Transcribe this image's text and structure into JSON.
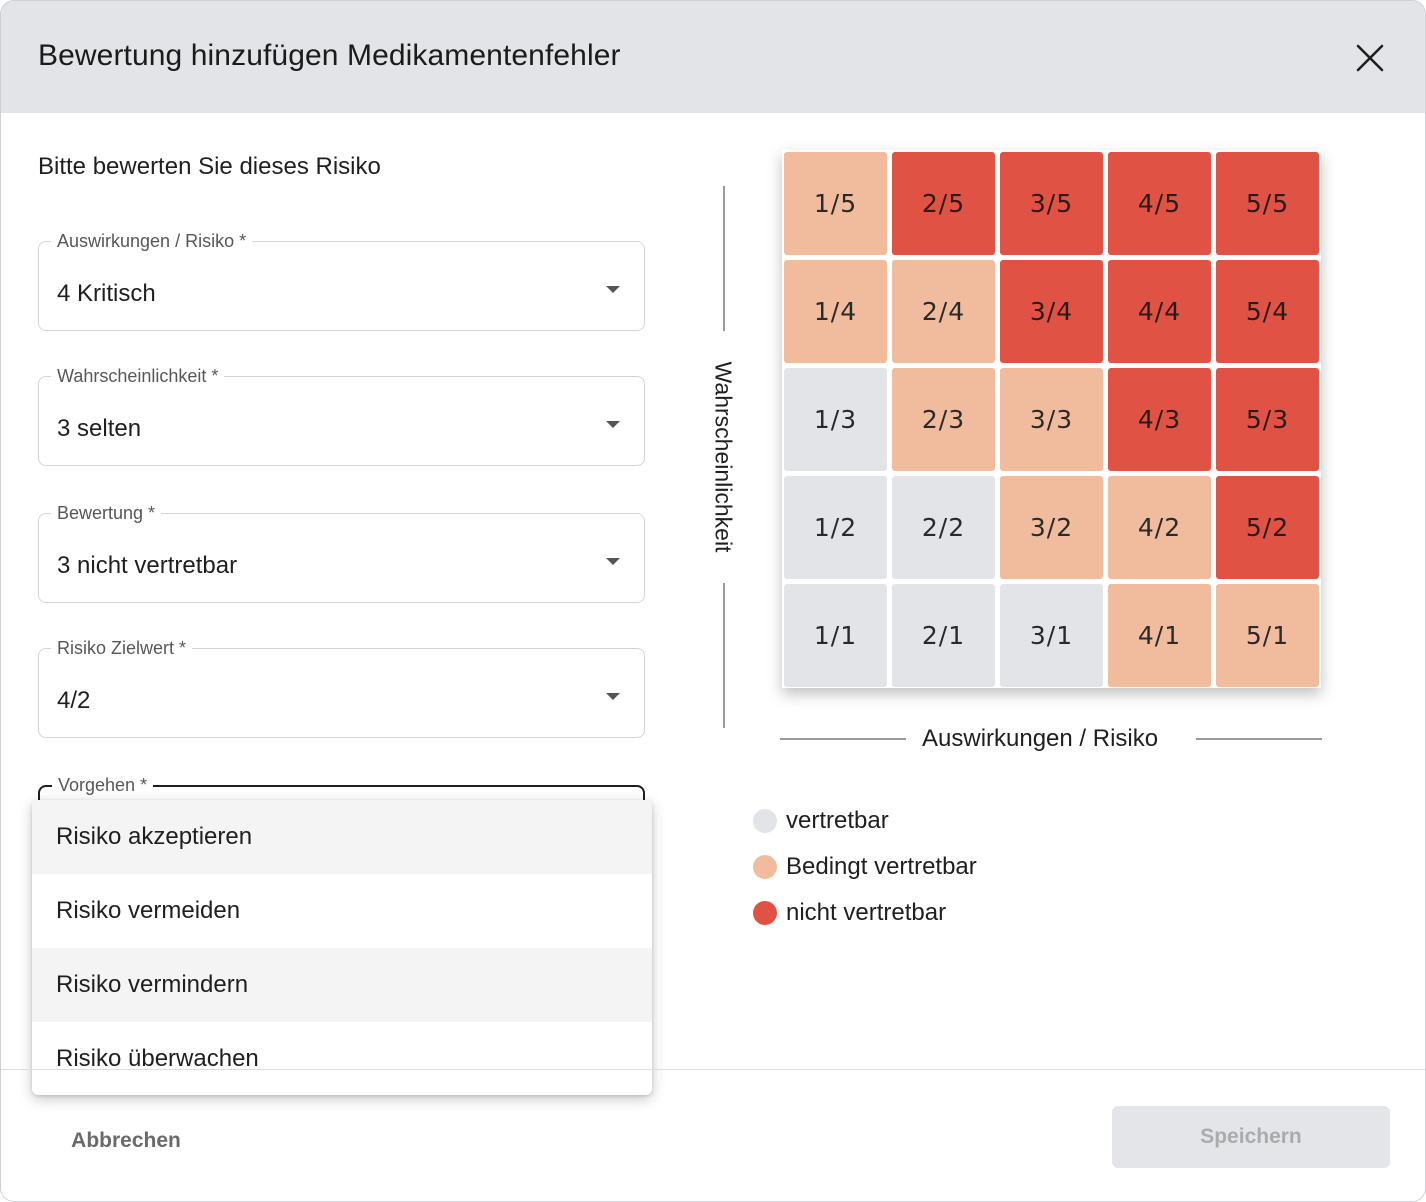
{
  "dialog": {
    "title": "Bewertung hinzufügen Medikamentenfehler",
    "subtitle": "Bitte bewerten Sie dieses Risiko"
  },
  "fields": [
    {
      "label": "Auswirkungen / Risiko *",
      "value": "4 Kritisch"
    },
    {
      "label": "Wahrscheinlichkeit *",
      "value": "3 selten"
    },
    {
      "label": "Bewertung *",
      "value": "3 nicht vertretbar"
    },
    {
      "label": "Risiko Zielwert *",
      "value": "4/2"
    },
    {
      "label": "Vorgehen *",
      "value": ""
    }
  ],
  "dropdown": {
    "options": [
      "Risiko akzeptieren",
      "Risiko vermeiden",
      "Risiko vermindern",
      "Risiko überwachen"
    ]
  },
  "matrix": {
    "y_axis_label": "Wahrscheinlichkeit",
    "x_axis_label": "Auswirkungen / Risiko",
    "rows": [
      [
        {
          "label": "1/5",
          "level": "light"
        },
        {
          "label": "2/5",
          "level": "red"
        },
        {
          "label": "3/5",
          "level": "red"
        },
        {
          "label": "4/5",
          "level": "red"
        },
        {
          "label": "5/5",
          "level": "red"
        }
      ],
      [
        {
          "label": "1/4",
          "level": "light"
        },
        {
          "label": "2/4",
          "level": "light"
        },
        {
          "label": "3/4",
          "level": "red"
        },
        {
          "label": "4/4",
          "level": "red"
        },
        {
          "label": "5/4",
          "level": "red"
        }
      ],
      [
        {
          "label": "1/3",
          "level": "grey"
        },
        {
          "label": "2/3",
          "level": "light"
        },
        {
          "label": "3/3",
          "level": "light"
        },
        {
          "label": "4/3",
          "level": "red"
        },
        {
          "label": "5/3",
          "level": "red"
        }
      ],
      [
        {
          "label": "1/2",
          "level": "grey"
        },
        {
          "label": "2/2",
          "level": "grey"
        },
        {
          "label": "3/2",
          "level": "light"
        },
        {
          "label": "4/2",
          "level": "light"
        },
        {
          "label": "5/2",
          "level": "red"
        }
      ],
      [
        {
          "label": "1/1",
          "level": "grey"
        },
        {
          "label": "2/1",
          "level": "grey"
        },
        {
          "label": "3/1",
          "level": "grey"
        },
        {
          "label": "4/1",
          "level": "light"
        },
        {
          "label": "5/1",
          "level": "light"
        }
      ]
    ]
  },
  "legend": [
    {
      "label": "vertretbar",
      "color": "#e3e4e8"
    },
    {
      "label": "Bedingt vertretbar",
      "color": "#f0bc9d"
    },
    {
      "label": "nicht vertretbar",
      "color": "#e05243"
    }
  ],
  "footer": {
    "cancel_label": "Abbrechen",
    "save_label": "Speichern"
  }
}
